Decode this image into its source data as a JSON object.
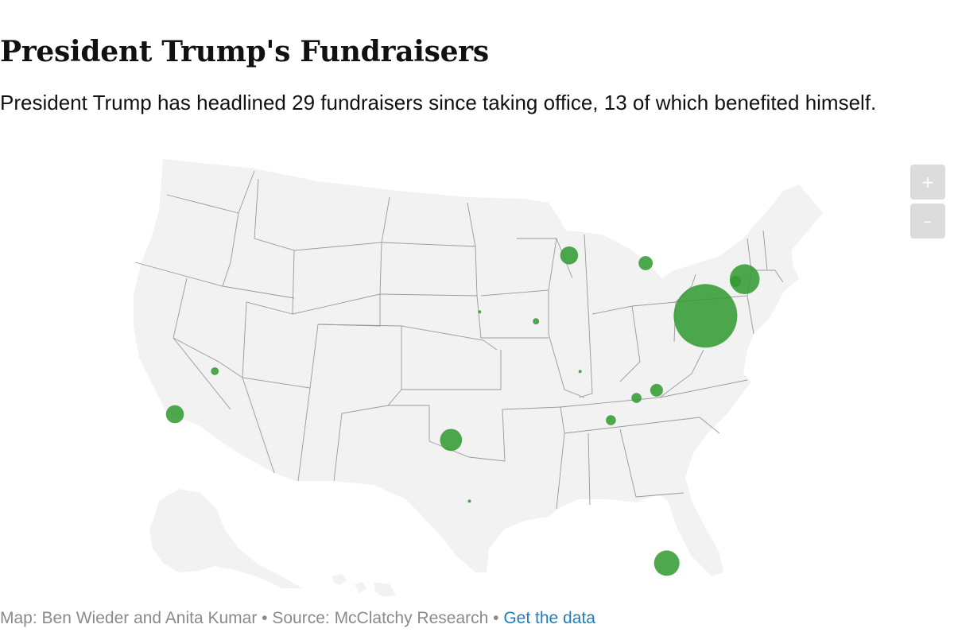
{
  "header": {
    "title": "President Trump's Fundraisers",
    "subtitle": "President Trump has headlined 29 fundraisers since taking office, 13 of which benefited himself."
  },
  "map": {
    "region": "United States",
    "bubble_color": "#2f9a2f",
    "land_color": "#f2f2f2",
    "border_color": "#999999",
    "bubbles": [
      {
        "place": "Washington, DC",
        "lon": -77.04,
        "lat": 38.9,
        "magnitude": 1.0
      },
      {
        "place": "New York, NY",
        "lon": -74.0,
        "lat": 40.71,
        "magnitude": 0.22
      },
      {
        "place": "New Jersey",
        "lon": -74.7,
        "lat": 40.6,
        "magnitude": 0.03
      },
      {
        "place": "Palm Beach, FL",
        "lon": -80.05,
        "lat": 26.7,
        "magnitude": 0.16
      },
      {
        "place": "Dallas, TX",
        "lon": -96.8,
        "lat": 32.78,
        "magnitude": 0.12
      },
      {
        "place": "Los Angeles, CA",
        "lon": -118.24,
        "lat": 34.05,
        "magnitude": 0.08
      },
      {
        "place": "Chicago, IL",
        "lon": -87.63,
        "lat": 41.88,
        "magnitude": 0.08
      },
      {
        "place": "Cleveland, OH",
        "lon": -81.69,
        "lat": 41.5,
        "magnitude": 0.05
      },
      {
        "place": "Charlotte, NC",
        "lon": -80.84,
        "lat": 35.23,
        "magnitude": 0.04
      },
      {
        "place": "Greenville, SC",
        "lon": -82.4,
        "lat": 34.85,
        "magnitude": 0.025
      },
      {
        "place": "Atlanta, GA",
        "lon": -84.39,
        "lat": 33.75,
        "magnitude": 0.025
      },
      {
        "place": "Las Vegas, NV",
        "lon": -115.14,
        "lat": 36.17,
        "magnitude": 0.015
      },
      {
        "place": "St. Louis, MO",
        "lon": -90.2,
        "lat": 38.63,
        "magnitude": 0.01
      },
      {
        "place": "Kansas City, MO",
        "lon": -94.58,
        "lat": 39.1,
        "magnitude": 0.002
      },
      {
        "place": "Nashville, TN",
        "lon": -86.78,
        "lat": 36.16,
        "magnitude": 0.002
      },
      {
        "place": "Houston, TX",
        "lon": -95.37,
        "lat": 29.76,
        "magnitude": 0.002
      }
    ]
  },
  "controls": {
    "zoom_in": "+",
    "zoom_out": "–"
  },
  "footer": {
    "credit": "Map: Ben Wieder and Anita Kumar • Source: McClatchy Research • ",
    "link": "Get the data"
  }
}
